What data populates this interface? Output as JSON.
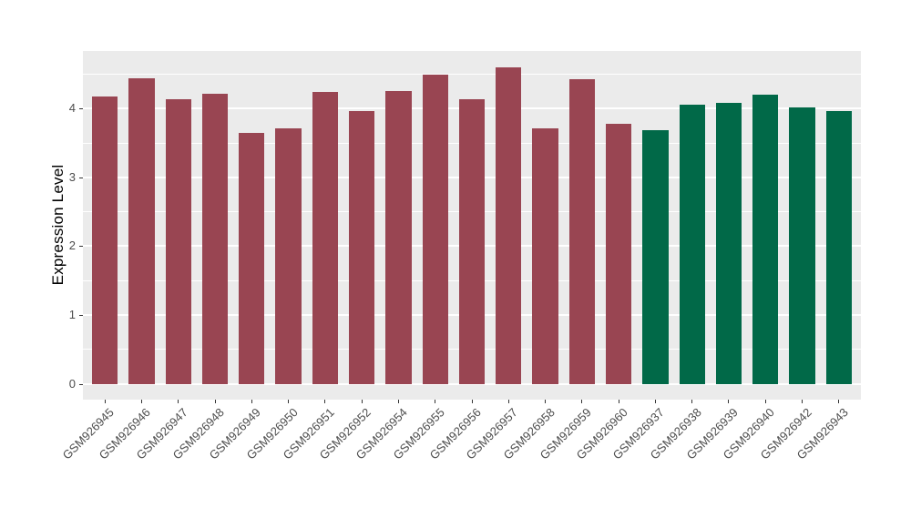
{
  "chart_data": {
    "type": "bar",
    "title": "",
    "xlabel": "",
    "ylabel": "Expression Level",
    "ylim": [
      0,
      4.84
    ],
    "yticks": [
      0,
      1,
      2,
      3,
      4
    ],
    "grid": "white major and minor horizontal gridlines on gray panel",
    "legend_position": "none",
    "categories": [
      "GSM926945",
      "GSM926946",
      "GSM926947",
      "GSM926948",
      "GSM926949",
      "GSM926950",
      "GSM926951",
      "GSM926952",
      "GSM926954",
      "GSM926955",
      "GSM926956",
      "GSM926957",
      "GSM926958",
      "GSM926959",
      "GSM926960",
      "GSM926937",
      "GSM926938",
      "GSM926939",
      "GSM926940",
      "GSM926942",
      "GSM926943"
    ],
    "values": [
      4.18,
      4.44,
      4.14,
      4.21,
      3.65,
      3.71,
      4.24,
      3.96,
      4.26,
      4.49,
      4.14,
      4.6,
      3.71,
      4.43,
      3.78,
      3.68,
      4.06,
      4.08,
      4.2,
      4.02,
      3.97
    ],
    "bar_groups": [
      "maroon",
      "maroon",
      "maroon",
      "maroon",
      "maroon",
      "maroon",
      "maroon",
      "maroon",
      "maroon",
      "maroon",
      "maroon",
      "maroon",
      "maroon",
      "maroon",
      "maroon",
      "green",
      "green",
      "green",
      "green",
      "green",
      "green"
    ],
    "group_colors": {
      "maroon": "#994552",
      "green": "#016948"
    }
  },
  "style": {
    "background": "#FFFFFF",
    "panel_bg": "#EBEBEB",
    "grid_color": "#FFFFFF",
    "axis_text_color": "#4D4D4D",
    "axis_title_color": "#000000",
    "tick_mark_color": "#333333"
  }
}
